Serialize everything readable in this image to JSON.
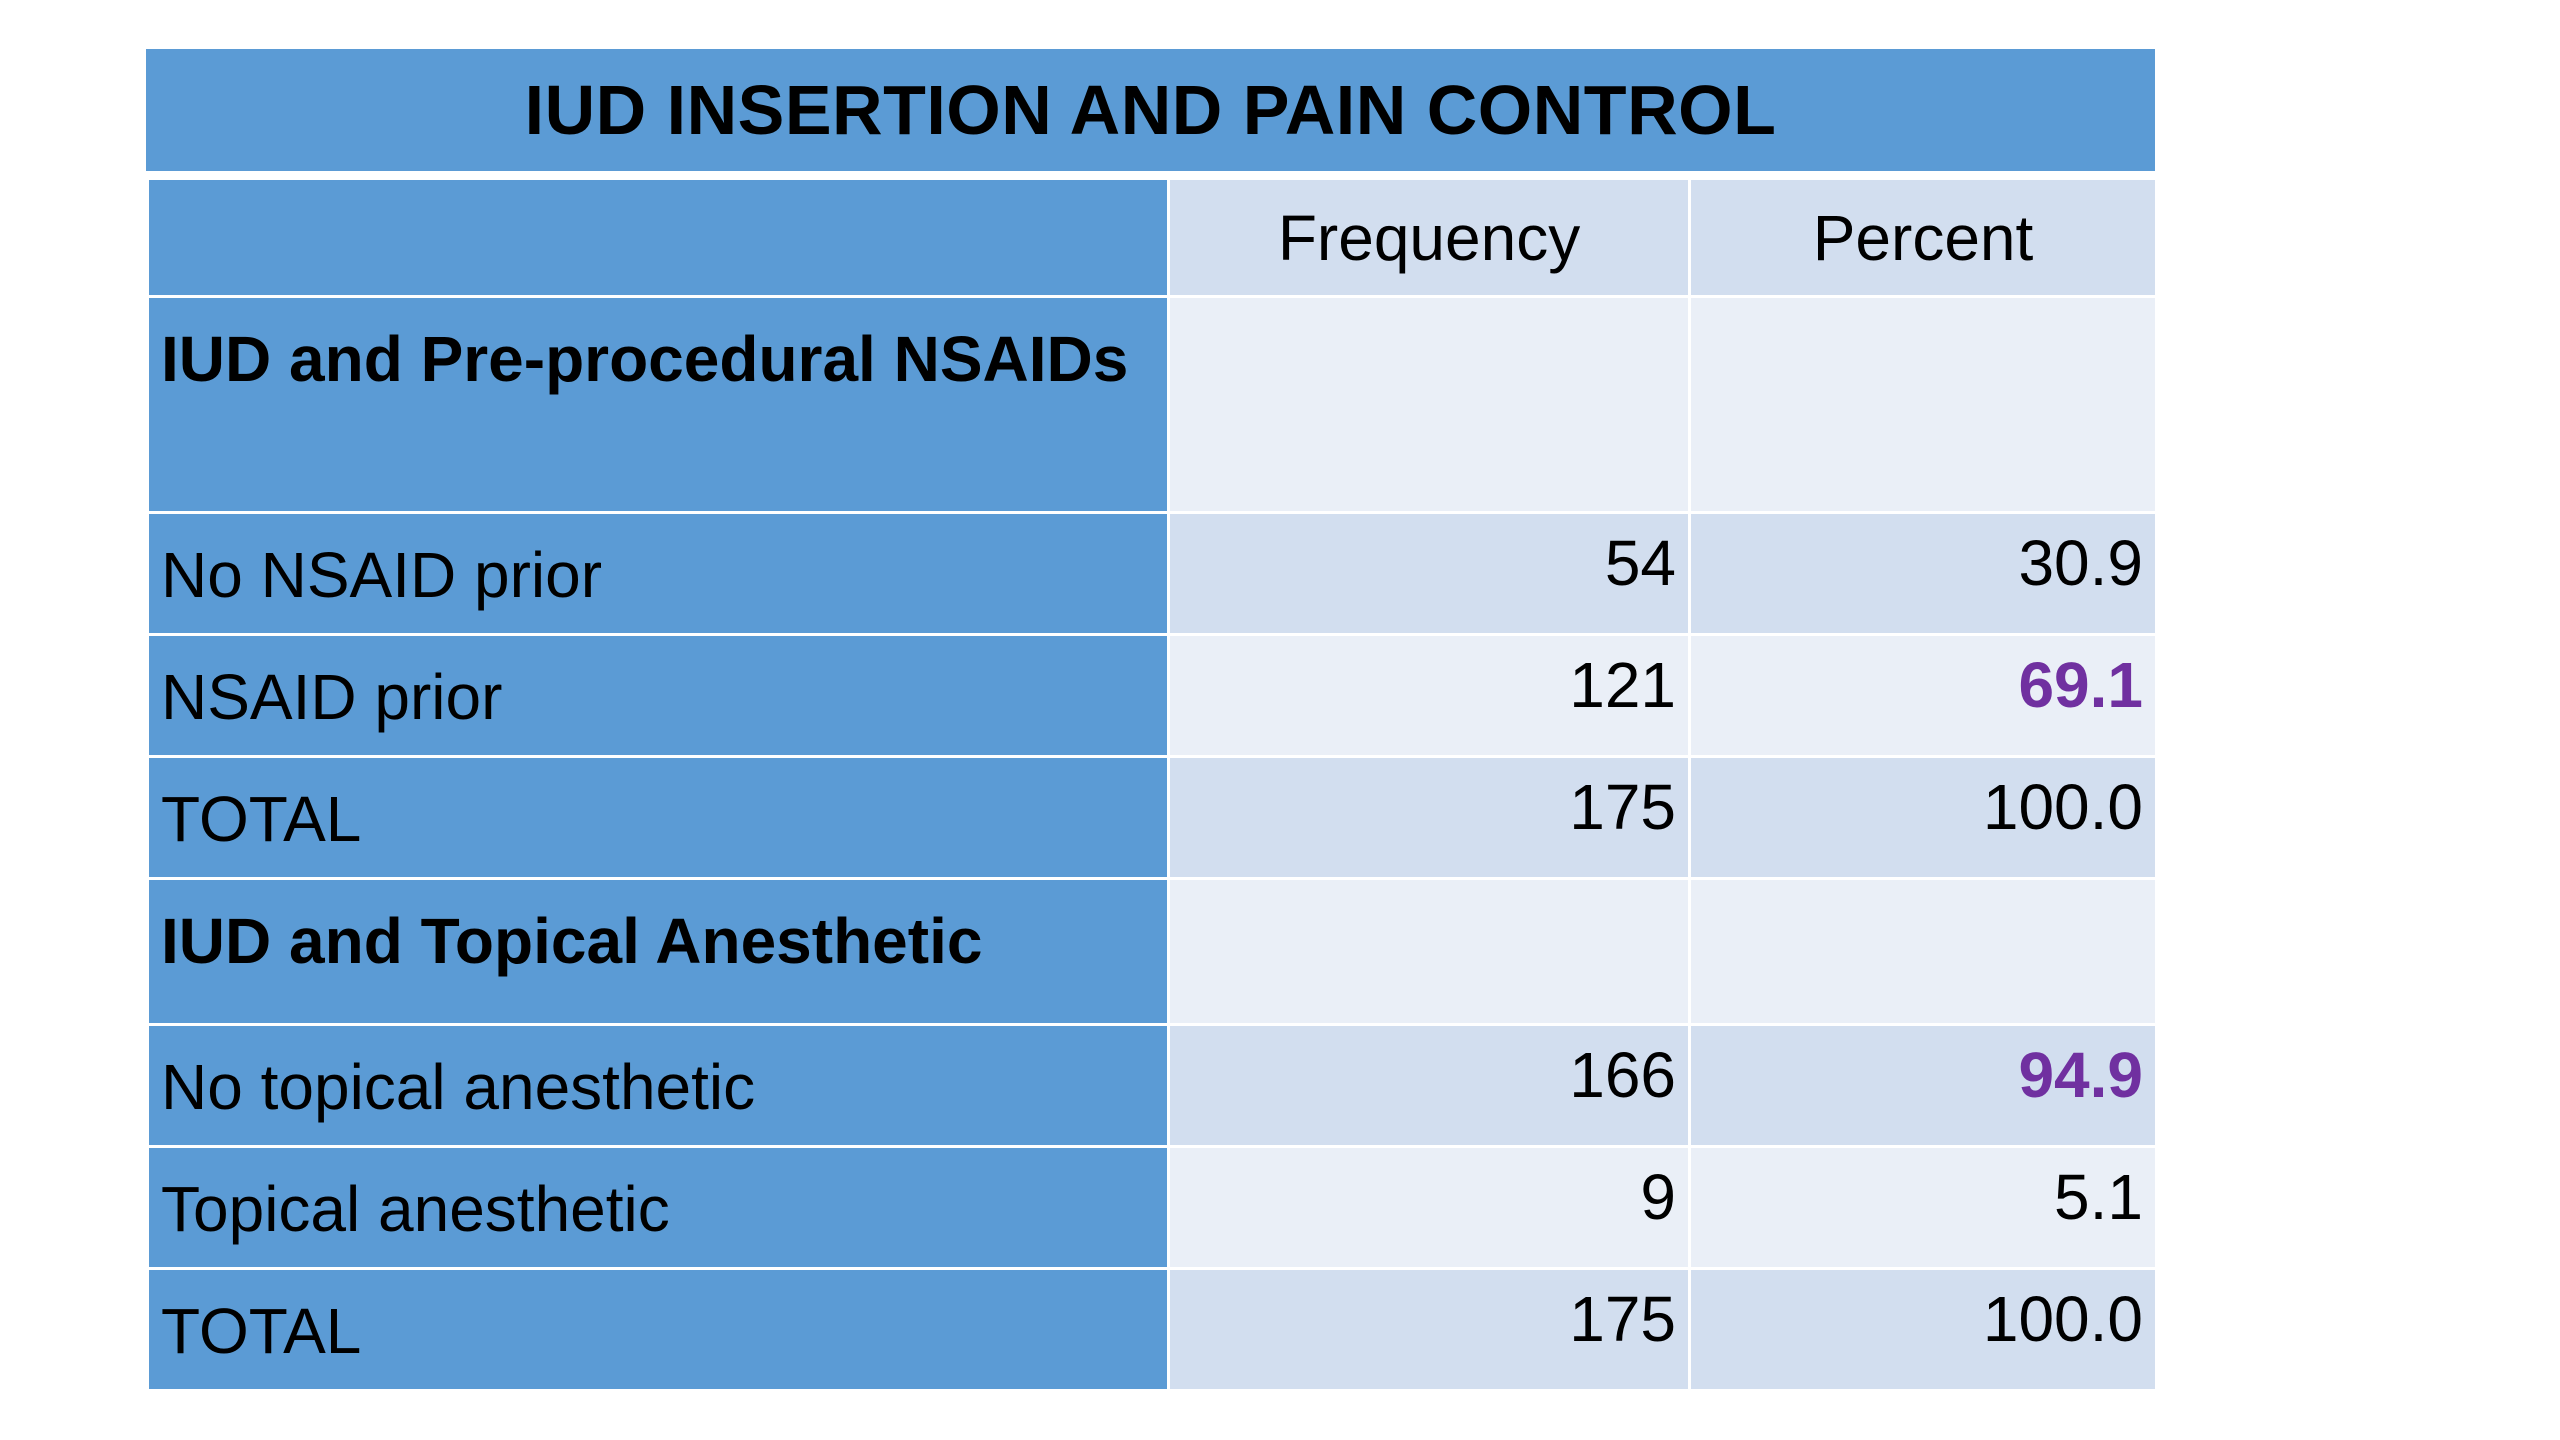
{
  "title": "IUD INSERTION AND PAIN CONTROL",
  "columns": {
    "frequency": "Frequency",
    "percent": "Percent"
  },
  "sections": [
    {
      "heading": "IUD and Pre-procedural NSAIDs",
      "rows": [
        {
          "label": "No NSAID prior",
          "frequency": "54",
          "percent": "30.9",
          "highlight": false
        },
        {
          "label": "NSAID prior",
          "frequency": "121",
          "percent": "69.1",
          "highlight": true
        },
        {
          "label": "TOTAL",
          "frequency": "175",
          "percent": "100.0",
          "highlight": false
        }
      ]
    },
    {
      "heading": "IUD and Topical Anesthetic",
      "rows": [
        {
          "label": "No topical anesthetic",
          "frequency": "166",
          "percent": "94.9",
          "highlight": true
        },
        {
          "label": "Topical anesthetic",
          "frequency": "9",
          "percent": "5.1",
          "highlight": false
        },
        {
          "label": "TOTAL",
          "frequency": "175",
          "percent": "100.0",
          "highlight": false
        }
      ]
    }
  ],
  "colors": {
    "header_blue": "#5b9bd5",
    "cell_dark": "#d2deef",
    "cell_light": "#eaeff7",
    "highlight_purple": "#7030a0"
  }
}
